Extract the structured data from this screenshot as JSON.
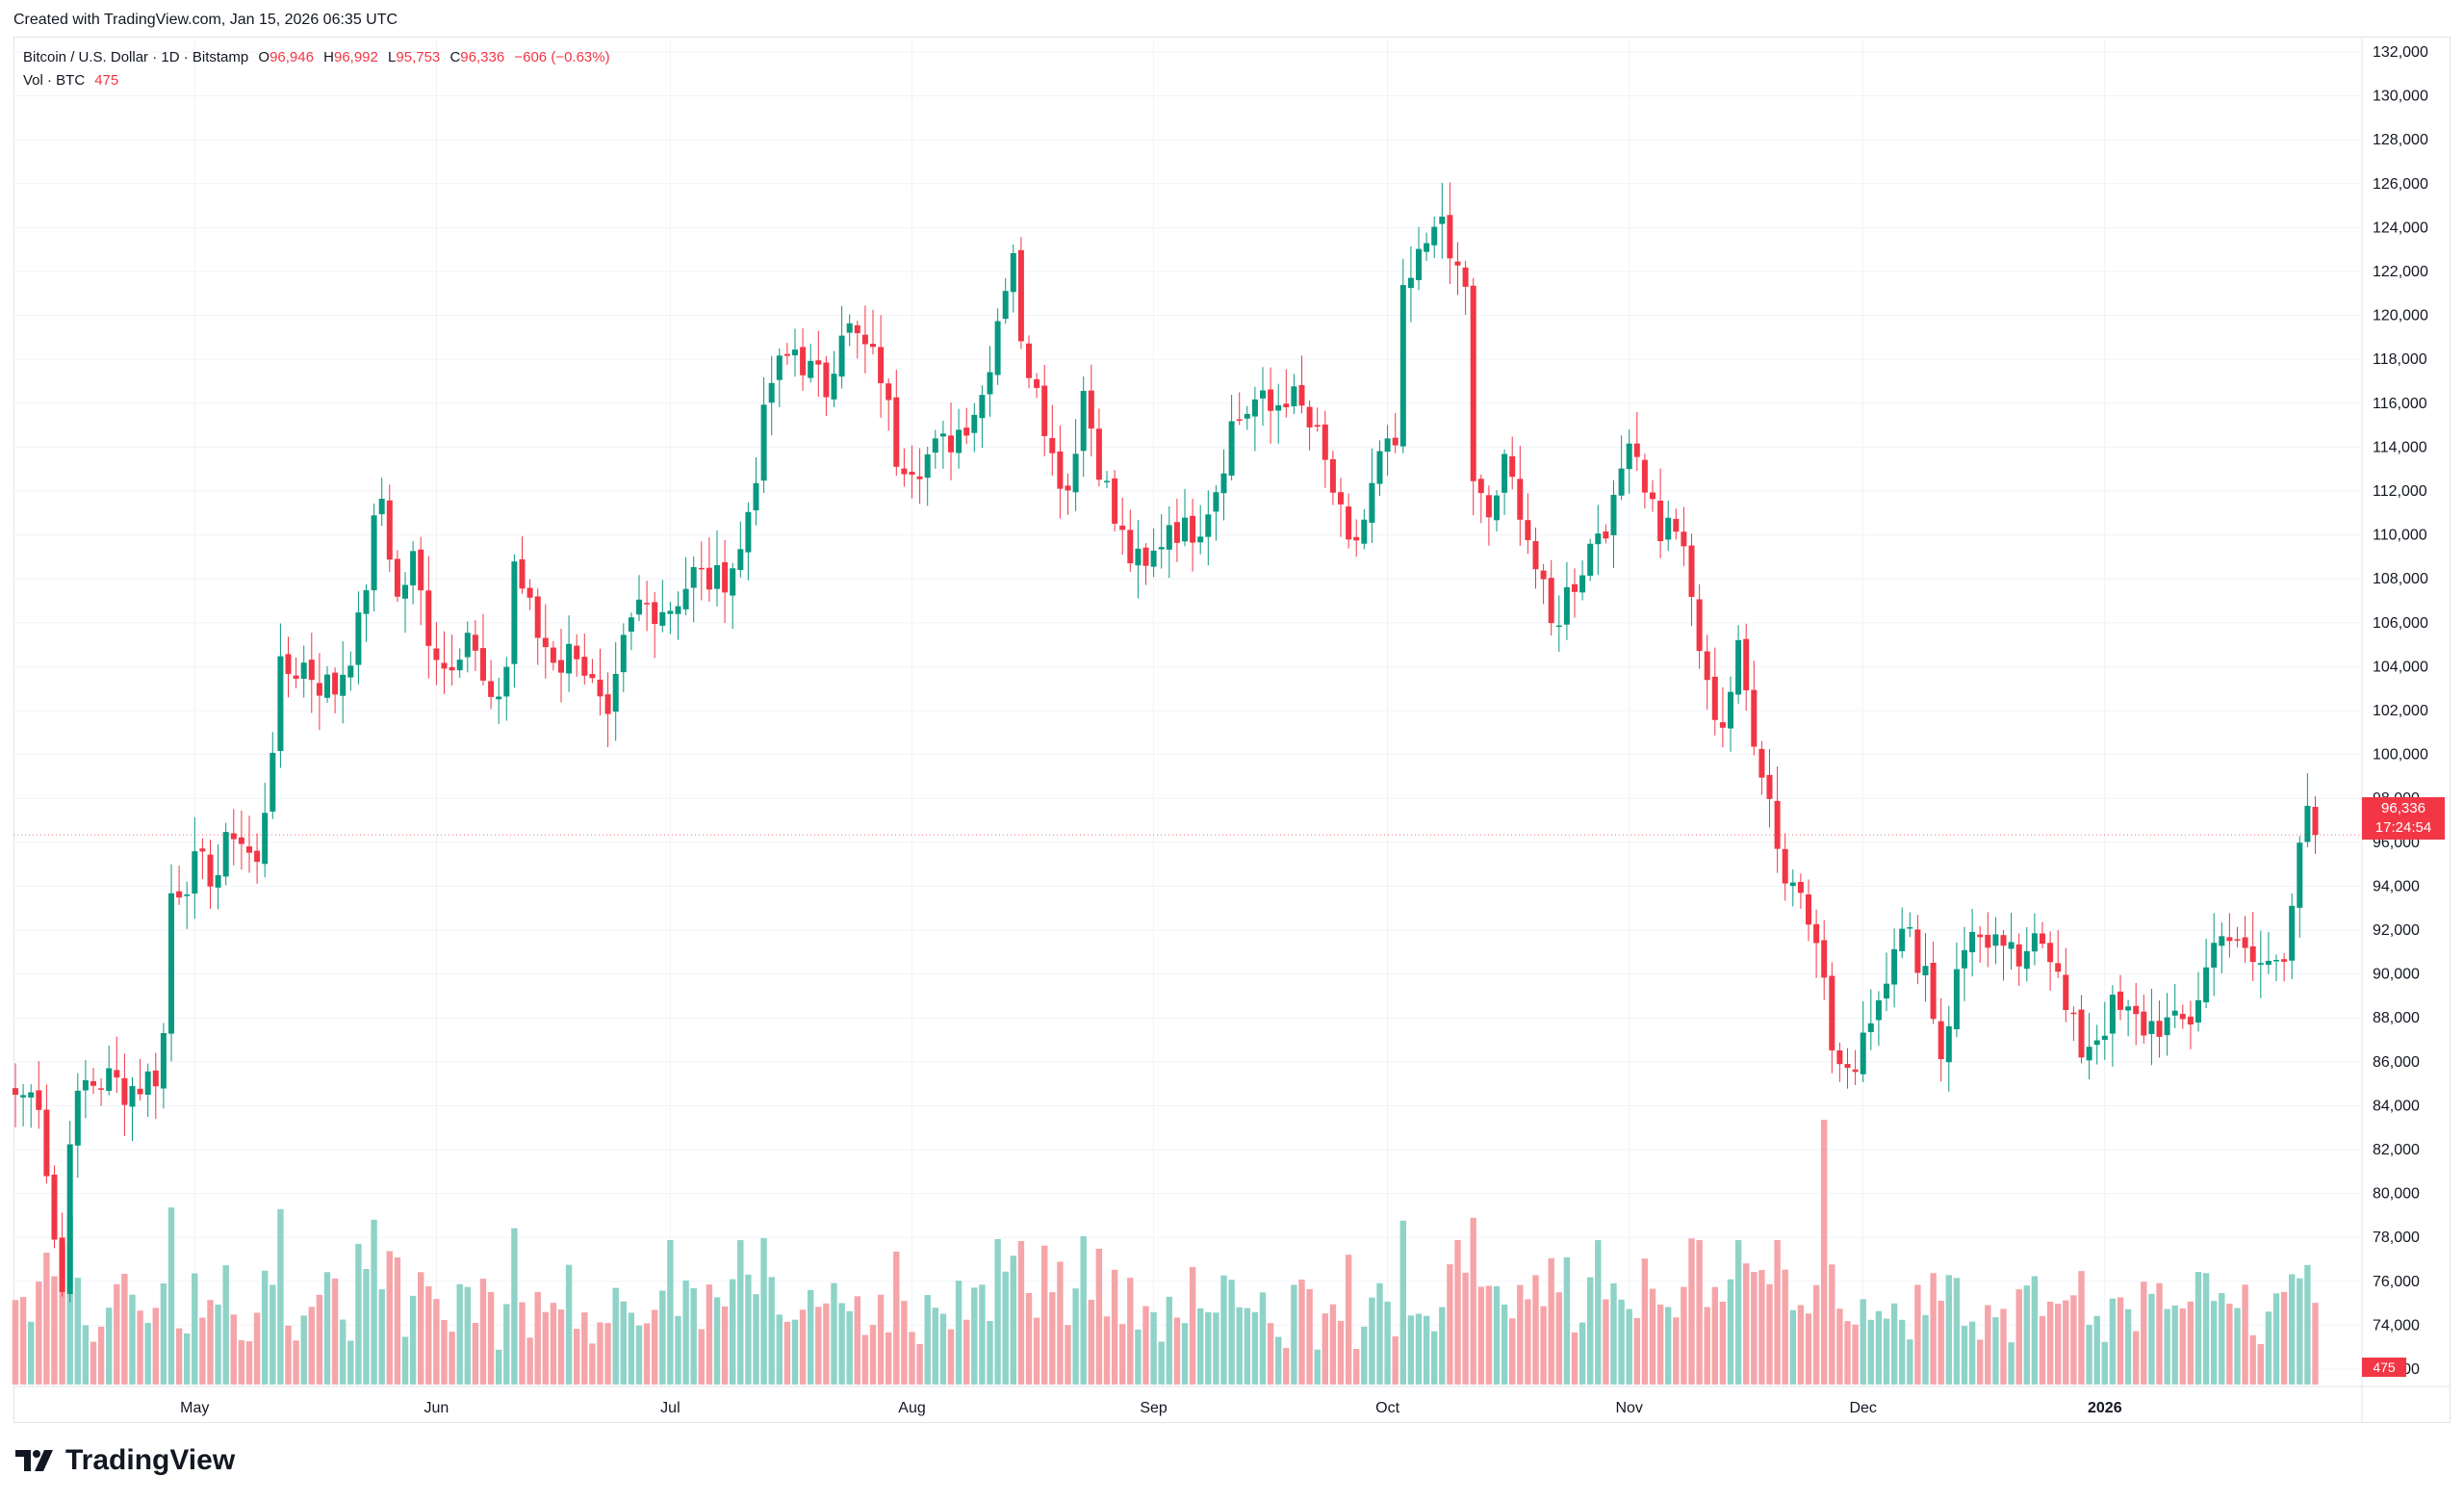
{
  "credit": "Created with TradingView.com, Jan 15, 2026 06:35 UTC",
  "brand": "TradingView",
  "legend": {
    "title": "Bitcoin / U.S. Dollar · 1D · Bitstamp",
    "o_label": "O",
    "o": "96,946",
    "h_label": "H",
    "h": "96,992",
    "l_label": "L",
    "l": "95,753",
    "c_label": "C",
    "c": "96,336",
    "change": "−606 (−0.63%)",
    "vol_label": "Vol · BTC",
    "vol_value": "475"
  },
  "price_tag": {
    "price": "96,336",
    "countdown": "17:24:54"
  },
  "vol_tag": "475",
  "colors": {
    "up": "#089981",
    "down": "#f23645",
    "up_vol": "#8fd3c8",
    "down_vol": "#f5a5a9"
  },
  "chart_data": {
    "type": "candlestick",
    "interval": "1D",
    "y_ticks": [
      72000,
      74000,
      76000,
      78000,
      80000,
      82000,
      84000,
      86000,
      88000,
      90000,
      92000,
      94000,
      96000,
      98000,
      100000,
      102000,
      104000,
      106000,
      108000,
      110000,
      112000,
      114000,
      116000,
      118000,
      120000,
      122000,
      124000,
      126000,
      128000,
      130000,
      132000
    ],
    "y_tick_labels": [
      "72,000",
      "74,000",
      "76,000",
      "78,000",
      "80,000",
      "82,000",
      "84,000",
      "86,000",
      "88,000",
      "90,000",
      "92,000",
      "94,000",
      "96,000",
      "98,000",
      "100,000",
      "102,000",
      "104,000",
      "106,000",
      "108,000",
      "110,000",
      "112,000",
      "114,000",
      "116,000",
      "118,000",
      "120,000",
      "122,000",
      "124,000",
      "126,000",
      "128,000",
      "130,000",
      "132,000"
    ],
    "ylim": [
      70500,
      133000
    ],
    "x_ticks": [
      {
        "label": "May",
        "index": 23
      },
      {
        "label": "Jun",
        "index": 54
      },
      {
        "label": "Jul",
        "index": 84
      },
      {
        "label": "Aug",
        "index": 115
      },
      {
        "label": "Sep",
        "index": 146
      },
      {
        "label": "Oct",
        "index": 176
      },
      {
        "label": "Nov",
        "index": 207
      },
      {
        "label": "Dec",
        "index": 237
      },
      {
        "label": "2026",
        "index": 268
      }
    ],
    "last_price": 96336,
    "close_anchors": [
      [
        0,
        84500
      ],
      [
        3,
        84500
      ],
      [
        5,
        78000
      ],
      [
        6,
        75500
      ],
      [
        7,
        83000
      ],
      [
        9,
        85000
      ],
      [
        12,
        85200
      ],
      [
        14,
        84800
      ],
      [
        16,
        85000
      ],
      [
        18,
        85500
      ],
      [
        19,
        87200
      ],
      [
        20,
        93700
      ],
      [
        23,
        94800
      ],
      [
        26,
        94600
      ],
      [
        28,
        96700
      ],
      [
        31,
        94800
      ],
      [
        34,
        103600
      ],
      [
        37,
        104100
      ],
      [
        39,
        103300
      ],
      [
        41,
        103000
      ],
      [
        44,
        105700
      ],
      [
        46,
        110200
      ],
      [
        47,
        111700
      ],
      [
        49,
        107000
      ],
      [
        51,
        108800
      ],
      [
        53,
        105600
      ],
      [
        55,
        104000
      ],
      [
        58,
        105700
      ],
      [
        61,
        101800
      ],
      [
        63,
        104100
      ],
      [
        64,
        108800
      ],
      [
        67,
        105400
      ],
      [
        70,
        104200
      ],
      [
        72,
        105000
      ],
      [
        76,
        101000
      ],
      [
        78,
        104800
      ],
      [
        80,
        106800
      ],
      [
        84,
        106800
      ],
      [
        87,
        108200
      ],
      [
        90,
        107800
      ],
      [
        93,
        109200
      ],
      [
        97,
        117000
      ],
      [
        100,
        118500
      ],
      [
        102,
        117400
      ],
      [
        104,
        116700
      ],
      [
        106,
        119700
      ],
      [
        109,
        118400
      ],
      [
        111,
        117400
      ],
      [
        113,
        113700
      ],
      [
        116,
        113400
      ],
      [
        119,
        114000
      ],
      [
        121,
        114800
      ],
      [
        124,
        116400
      ],
      [
        126,
        120000
      ],
      [
        128,
        123200
      ],
      [
        129,
        118300
      ],
      [
        131,
        117300
      ],
      [
        133,
        113500
      ],
      [
        135,
        112200
      ],
      [
        137,
        116600
      ],
      [
        139,
        113400
      ],
      [
        141,
        110600
      ],
      [
        143,
        109000
      ],
      [
        145,
        108200
      ],
      [
        148,
        110700
      ],
      [
        150,
        110100
      ],
      [
        152,
        110700
      ],
      [
        154,
        112300
      ],
      [
        156,
        115000
      ],
      [
        159,
        116100
      ],
      [
        161,
        115600
      ],
      [
        163,
        116500
      ],
      [
        165,
        115600
      ],
      [
        167,
        114200
      ],
      [
        169,
        112000
      ],
      [
        171,
        109100
      ],
      [
        173,
        110700
      ],
      [
        175,
        113300
      ],
      [
        177,
        114000
      ],
      [
        178,
        120500
      ],
      [
        181,
        123400
      ],
      [
        182,
        124800
      ],
      [
        184,
        122500
      ],
      [
        186,
        121500
      ],
      [
        187,
        112000
      ],
      [
        189,
        110800
      ],
      [
        191,
        113000
      ],
      [
        193,
        111500
      ],
      [
        195,
        108500
      ],
      [
        197,
        105700
      ],
      [
        199,
        107300
      ],
      [
        201,
        108700
      ],
      [
        203,
        110400
      ],
      [
        205,
        111000
      ],
      [
        207,
        115000
      ],
      [
        209,
        112500
      ],
      [
        211,
        110200
      ],
      [
        213,
        110500
      ],
      [
        215,
        107000
      ],
      [
        217,
        102800
      ],
      [
        219,
        101500
      ],
      [
        221,
        104500
      ],
      [
        223,
        101100
      ],
      [
        225,
        98000
      ],
      [
        227,
        94300
      ],
      [
        229,
        94000
      ],
      [
        231,
        92200
      ],
      [
        233,
        86600
      ],
      [
        235,
        85000
      ],
      [
        237,
        87500
      ],
      [
        239,
        89000
      ],
      [
        241,
        91800
      ],
      [
        243,
        91500
      ],
      [
        245,
        90300
      ],
      [
        247,
        86400
      ],
      [
        249,
        89800
      ],
      [
        251,
        92400
      ],
      [
        253,
        90500
      ],
      [
        255,
        91500
      ],
      [
        257,
        89800
      ],
      [
        259,
        92600
      ],
      [
        261,
        91200
      ],
      [
        263,
        88200
      ],
      [
        265,
        86600
      ],
      [
        267,
        87300
      ],
      [
        269,
        88300
      ],
      [
        271,
        88000
      ],
      [
        273,
        87600
      ],
      [
        275,
        87800
      ],
      [
        277,
        87500
      ],
      [
        279,
        88000
      ],
      [
        281,
        90200
      ],
      [
        283,
        92400
      ],
      [
        285,
        91000
      ],
      [
        287,
        90500
      ],
      [
        289,
        90400
      ],
      [
        291,
        91300
      ],
      [
        293,
        96200
      ],
      [
        294,
        96900
      ],
      [
        295,
        96336
      ]
    ],
    "volume_ylim": [
      0,
      60000
    ]
  }
}
